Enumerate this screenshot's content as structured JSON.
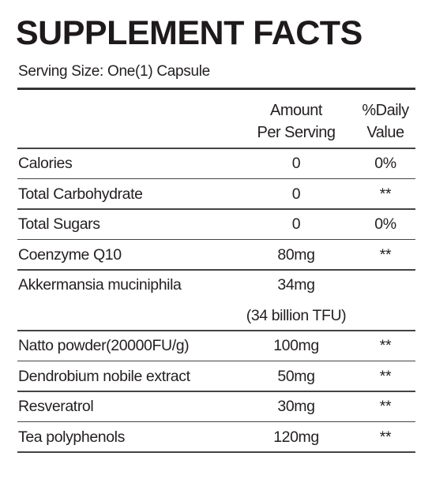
{
  "title": "SUPPLEMENT FACTS",
  "serving_size": "Serving Size: One(1) Capsule",
  "header": {
    "amount": [
      "Amount",
      "Per Serving"
    ],
    "daily_value": [
      "%Daily",
      "Value"
    ]
  },
  "rows": [
    {
      "name": "Calories",
      "amount": "0",
      "daily_value": "0%"
    },
    {
      "name": "Total Carbohydrate",
      "amount": "0",
      "daily_value": "**"
    },
    {
      "name": "Total Sugars",
      "amount": "0",
      "daily_value": "0%"
    },
    {
      "name": "Coenzyme Q10",
      "amount": "80mg",
      "daily_value": "**"
    },
    {
      "name": "Akkermansia muciniphila",
      "amount": "34mg",
      "note": "(34 billion TFU)"
    },
    {
      "name": "Natto powder(20000FU/g)",
      "amount": "100mg",
      "daily_value": "**"
    },
    {
      "name": "Dendrobium nobile extract",
      "amount": "50mg",
      "daily_value": "**"
    },
    {
      "name": "Resveratrol",
      "amount": "30mg",
      "daily_value": "**"
    },
    {
      "name": "Tea polyphenols",
      "amount": "120mg",
      "daily_value": "**"
    }
  ]
}
